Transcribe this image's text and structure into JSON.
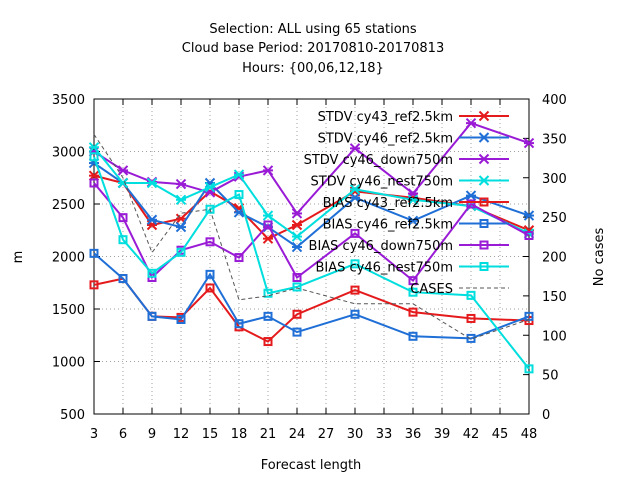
{
  "chart_data": {
    "type": "line",
    "title_lines": [
      "Selection: ALL using    65 stations",
      "Cloud base   Period: 20170810-20170813",
      "Hours: {00,06,12,18}"
    ],
    "xlabel": "Forecast length",
    "ylabel": "m",
    "y2label": "No cases",
    "xlim": [
      3,
      48
    ],
    "ylim": [
      500,
      3500
    ],
    "y2lim": [
      0,
      400
    ],
    "xticks": [
      "3",
      "6",
      "9",
      "12",
      "15",
      "18",
      "21",
      "24",
      "27",
      "30",
      "33",
      "36",
      "39",
      "42",
      "45",
      "48"
    ],
    "yticks": [
      "500",
      "1000",
      "1500",
      "2000",
      "2500",
      "3000",
      "3500"
    ],
    "y2ticks": [
      "0",
      "50",
      "100",
      "150",
      "200",
      "250",
      "300",
      "350",
      "400"
    ],
    "grid": true,
    "legend_position": "top-right",
    "series": [
      {
        "name": "STDV cy43_ref2.5km",
        "color": "#e41a1c",
        "marker": "star",
        "axis": "y1",
        "x": [
          3,
          6,
          9,
          12,
          15,
          18,
          21,
          24,
          30,
          36,
          42,
          48
        ],
        "y": [
          2770,
          2700,
          2300,
          2360,
          2620,
          2460,
          2170,
          2300,
          2620,
          2560,
          2480,
          2250
        ]
      },
      {
        "name": "STDV cy46_ref2.5km",
        "color": "#1f6fd6",
        "marker": "star",
        "axis": "y1",
        "x": [
          3,
          6,
          9,
          12,
          15,
          18,
          21,
          24,
          30,
          36,
          42,
          48
        ],
        "y": [
          2890,
          2700,
          2350,
          2280,
          2700,
          2420,
          2280,
          2090,
          2560,
          2340,
          2580,
          2390
        ]
      },
      {
        "name": "STDV cy46_down750m",
        "color": "#9a1bd6",
        "marker": "star",
        "axis": "y1",
        "x": [
          3,
          6,
          9,
          12,
          15,
          18,
          21,
          24,
          30,
          36,
          42,
          48
        ],
        "y": [
          3000,
          2820,
          2710,
          2690,
          2610,
          2760,
          2820,
          2410,
          3030,
          2600,
          3270,
          3080
        ]
      },
      {
        "name": "STDV cy46_nest750m",
        "color": "#00dede",
        "marker": "star",
        "axis": "y1",
        "x": [
          3,
          6,
          9,
          12,
          15,
          18,
          21,
          24,
          30,
          36,
          42,
          48
        ],
        "y": [
          3040,
          2700,
          2700,
          2540,
          2660,
          2780,
          2390,
          2190,
          2640,
          2540,
          2480,
          2220
        ]
      },
      {
        "name": "BIAS cy43_ref2.5km",
        "color": "#e41a1c",
        "marker": "square",
        "axis": "y1",
        "x": [
          3,
          6,
          9,
          12,
          15,
          18,
          21,
          24,
          30,
          36,
          42,
          48
        ],
        "y": [
          1730,
          1790,
          1430,
          1420,
          1700,
          1330,
          1190,
          1450,
          1680,
          1470,
          1410,
          1390
        ]
      },
      {
        "name": "BIAS cy46_ref2.5km",
        "color": "#1f6fd6",
        "marker": "square",
        "axis": "y1",
        "x": [
          3,
          6,
          9,
          12,
          15,
          18,
          21,
          24,
          30,
          36,
          42,
          48
        ],
        "y": [
          2030,
          1790,
          1430,
          1400,
          1830,
          1360,
          1430,
          1280,
          1450,
          1240,
          1220,
          1430
        ]
      },
      {
        "name": "BIAS cy46_down750m",
        "color": "#9a1bd6",
        "marker": "square",
        "axis": "y1",
        "x": [
          3,
          6,
          9,
          12,
          15,
          18,
          21,
          24,
          30,
          36,
          42,
          48
        ],
        "y": [
          2700,
          2370,
          1800,
          2060,
          2140,
          1990,
          2300,
          1800,
          2220,
          1770,
          2500,
          2200
        ]
      },
      {
        "name": "BIAS cy46_nest750m",
        "color": "#00dede",
        "marker": "square",
        "axis": "y1",
        "x": [
          3,
          6,
          9,
          12,
          15,
          18,
          21,
          24,
          30,
          36,
          42,
          48
        ],
        "y": [
          2950,
          2160,
          1840,
          2040,
          2450,
          2590,
          1650,
          1710,
          1930,
          1660,
          1630,
          930
        ]
      },
      {
        "name": "CASES",
        "color": "#555555",
        "marker": "none",
        "dashed": true,
        "axis": "y2",
        "x": [
          3,
          6,
          9,
          12,
          15,
          18,
          21,
          24,
          30,
          36,
          42,
          48
        ],
        "y": [
          355,
          300,
          205,
          255,
          260,
          145,
          150,
          160,
          140,
          140,
          95,
          120
        ]
      }
    ]
  }
}
